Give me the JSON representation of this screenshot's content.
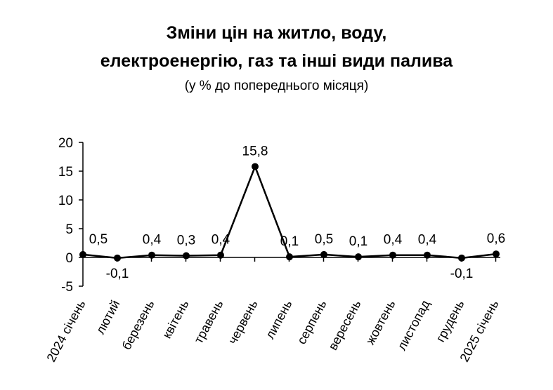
{
  "chart_data": {
    "type": "line",
    "title": [
      "Зміни цін на житло, воду,",
      "електроенергію, газ та інші види палива"
    ],
    "subtitle": "(у % до попереднього місяця)",
    "xlabel": "",
    "ylabel": "",
    "categories": [
      "2024 січень",
      "лютий",
      "березень",
      "квітень",
      "травень",
      "червень",
      "липень",
      "серпень",
      "вересень",
      "жовтень",
      "листопад",
      "грудень",
      "2025 січень"
    ],
    "series": [
      {
        "values": [
          0.5,
          -0.1,
          0.4,
          0.3,
          0.4,
          15.8,
          0.1,
          0.5,
          0.1,
          0.4,
          0.4,
          -0.1,
          0.6
        ],
        "labels": [
          "0,5",
          "-0,1",
          "0,4",
          "0,3",
          "0,4",
          "15,8",
          "0,1",
          "0,5",
          "0,1",
          "0,4",
          "0,4",
          "-0,1",
          "0,6"
        ]
      }
    ],
    "yticks": [
      20,
      15,
      10,
      5,
      0,
      -5
    ],
    "ytick_labels": [
      "20",
      "15",
      "10",
      "5",
      "0",
      "-5"
    ],
    "ylim": [
      -5,
      20
    ],
    "grid": false,
    "legend": "none",
    "line_color": "#000000",
    "marker_color": "#000000"
  }
}
